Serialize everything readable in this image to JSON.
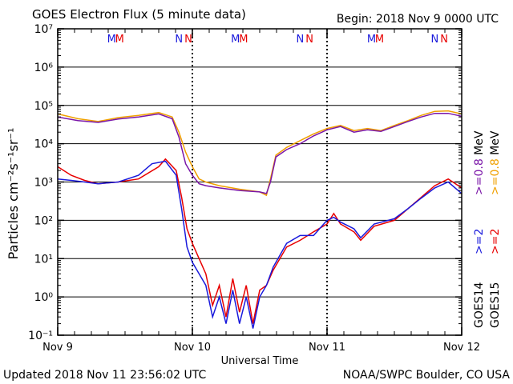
{
  "header": {
    "title": "GOES Electron Flux (5 minute data)",
    "begin": "Begin: 2018 Nov 9 0000 UTC"
  },
  "footer": {
    "updated": "Updated 2018 Nov 11 23:56:02 UTC",
    "credit": "NOAA/SWPC Boulder, CO USA"
  },
  "colors": {
    "goes14_ge2": "#1a1adc",
    "goes15_ge2": "#e80000",
    "goes14_ge08": "#7a16a8",
    "goes15_ge08": "#f0a000",
    "marker_m": [
      "#1a1adc",
      "#e80000"
    ],
    "marker_n": [
      "#1a1adc",
      "#e80000"
    ]
  },
  "markers": [
    {
      "letter": "M",
      "day": 0.4
    },
    {
      "letter": "M",
      "day": 0.46
    },
    {
      "letter": "N",
      "day": 0.9
    },
    {
      "letter": "N",
      "day": 0.97
    },
    {
      "letter": "M",
      "day": 1.32
    },
    {
      "letter": "M",
      "day": 1.38
    },
    {
      "letter": "N",
      "day": 1.8
    },
    {
      "letter": "N",
      "day": 1.87
    },
    {
      "letter": "M",
      "day": 2.33
    },
    {
      "letter": "M",
      "day": 2.39
    },
    {
      "letter": "N",
      "day": 2.8
    },
    {
      "letter": "N",
      "day": 2.87
    }
  ],
  "chart_data": {
    "type": "line",
    "title": "GOES Electron Flux (5 minute data)",
    "xlabel": "Universal Time",
    "ylabel": "Particles cm⁻²s⁻¹sr⁻¹",
    "x_tick_labels": [
      "Nov 9",
      "Nov 10",
      "Nov 11",
      "Nov 12"
    ],
    "y_tick_labels": [
      "10⁻¹",
      "10⁰",
      "10¹",
      "10²",
      "10³",
      "10⁴",
      "10⁵",
      "10⁶",
      "10⁷"
    ],
    "x_range_days": [
      0,
      3
    ],
    "y_log_range": [
      -1,
      7
    ],
    "threshold_line": 1000,
    "grid": true,
    "legend_right": [
      {
        "label": "GOES15",
        "color": "#000000"
      },
      {
        "label": "GOES14",
        "color": "#000000"
      },
      {
        "label": ">=2",
        "color": "#e80000"
      },
      {
        "label": ">=2",
        "color": "#1a1adc"
      },
      {
        "label": ">=0.8",
        "color": "#f0a000"
      },
      {
        "label": ">=0.8",
        "color": "#7a16a8"
      },
      {
        "label": "MeV",
        "color": "#000000"
      },
      {
        "label": "MeV",
        "color": "#000000"
      }
    ],
    "series": [
      {
        "name": "GOES15 >=0.8 MeV",
        "color": "#f0a000",
        "points": [
          [
            0.0,
            60000
          ],
          [
            0.15,
            45000
          ],
          [
            0.3,
            38000
          ],
          [
            0.45,
            48000
          ],
          [
            0.6,
            55000
          ],
          [
            0.75,
            65000
          ],
          [
            0.85,
            50000
          ],
          [
            0.9,
            20000
          ],
          [
            0.95,
            6000
          ],
          [
            1.0,
            2500
          ],
          [
            1.05,
            1200
          ],
          [
            1.1,
            1000
          ],
          [
            1.2,
            800
          ],
          [
            1.35,
            650
          ],
          [
            1.5,
            550
          ],
          [
            1.55,
            450
          ],
          [
            1.58,
            1200
          ],
          [
            1.62,
            5000
          ],
          [
            1.7,
            8000
          ],
          [
            1.8,
            12000
          ],
          [
            1.9,
            18000
          ],
          [
            2.0,
            25000
          ],
          [
            2.1,
            30000
          ],
          [
            2.2,
            22000
          ],
          [
            2.3,
            25000
          ],
          [
            2.4,
            22000
          ],
          [
            2.5,
            30000
          ],
          [
            2.6,
            40000
          ],
          [
            2.7,
            55000
          ],
          [
            2.8,
            70000
          ],
          [
            2.9,
            72000
          ],
          [
            3.0,
            60000
          ]
        ]
      },
      {
        "name": "GOES14 >=0.8 MeV",
        "color": "#7a16a8",
        "points": [
          [
            0.0,
            50000
          ],
          [
            0.15,
            40000
          ],
          [
            0.3,
            36000
          ],
          [
            0.45,
            44000
          ],
          [
            0.6,
            50000
          ],
          [
            0.75,
            60000
          ],
          [
            0.85,
            45000
          ],
          [
            0.9,
            15000
          ],
          [
            0.95,
            3000
          ],
          [
            1.0,
            1500
          ],
          [
            1.05,
            900
          ],
          [
            1.1,
            800
          ],
          [
            1.2,
            700
          ],
          [
            1.35,
            600
          ],
          [
            1.5,
            550
          ],
          [
            1.55,
            500
          ],
          [
            1.58,
            1000
          ],
          [
            1.62,
            4500
          ],
          [
            1.7,
            7000
          ],
          [
            1.8,
            10000
          ],
          [
            1.9,
            16000
          ],
          [
            2.0,
            23000
          ],
          [
            2.1,
            28000
          ],
          [
            2.2,
            20000
          ],
          [
            2.3,
            23000
          ],
          [
            2.4,
            21000
          ],
          [
            2.5,
            28000
          ],
          [
            2.6,
            38000
          ],
          [
            2.7,
            50000
          ],
          [
            2.8,
            62000
          ],
          [
            2.9,
            62000
          ],
          [
            3.0,
            52000
          ]
        ]
      },
      {
        "name": "GOES15 >=2 MeV",
        "color": "#e80000",
        "points": [
          [
            0.0,
            2500
          ],
          [
            0.1,
            1500
          ],
          [
            0.2,
            1100
          ],
          [
            0.3,
            900
          ],
          [
            0.45,
            1000
          ],
          [
            0.6,
            1200
          ],
          [
            0.75,
            2500
          ],
          [
            0.8,
            4000
          ],
          [
            0.88,
            2000
          ],
          [
            0.92,
            400
          ],
          [
            0.96,
            60
          ],
          [
            1.0,
            25
          ],
          [
            1.05,
            10
          ],
          [
            1.1,
            4
          ],
          [
            1.15,
            0.6
          ],
          [
            1.2,
            2
          ],
          [
            1.25,
            0.3
          ],
          [
            1.3,
            3
          ],
          [
            1.35,
            0.4
          ],
          [
            1.4,
            2
          ],
          [
            1.45,
            0.2
          ],
          [
            1.5,
            1.5
          ],
          [
            1.55,
            2
          ],
          [
            1.6,
            5
          ],
          [
            1.7,
            20
          ],
          [
            1.8,
            30
          ],
          [
            1.9,
            50
          ],
          [
            2.0,
            80
          ],
          [
            2.05,
            150
          ],
          [
            2.1,
            80
          ],
          [
            2.2,
            50
          ],
          [
            2.25,
            30
          ],
          [
            2.35,
            70
          ],
          [
            2.5,
            100
          ],
          [
            2.6,
            200
          ],
          [
            2.7,
            400
          ],
          [
            2.8,
            800
          ],
          [
            2.9,
            1200
          ],
          [
            3.0,
            700
          ]
        ]
      },
      {
        "name": "GOES14 >=2 MeV",
        "color": "#1a1adc",
        "points": [
          [
            0.0,
            1200
          ],
          [
            0.1,
            1100
          ],
          [
            0.2,
            1000
          ],
          [
            0.3,
            900
          ],
          [
            0.45,
            1000
          ],
          [
            0.6,
            1500
          ],
          [
            0.7,
            3000
          ],
          [
            0.8,
            3500
          ],
          [
            0.88,
            1500
          ],
          [
            0.92,
            200
          ],
          [
            0.96,
            20
          ],
          [
            1.0,
            8
          ],
          [
            1.05,
            4
          ],
          [
            1.1,
            2
          ],
          [
            1.15,
            0.3
          ],
          [
            1.2,
            1
          ],
          [
            1.25,
            0.2
          ],
          [
            1.3,
            1.5
          ],
          [
            1.35,
            0.2
          ],
          [
            1.4,
            1
          ],
          [
            1.45,
            0.15
          ],
          [
            1.5,
            1
          ],
          [
            1.55,
            2
          ],
          [
            1.6,
            6
          ],
          [
            1.7,
            25
          ],
          [
            1.8,
            40
          ],
          [
            1.9,
            40
          ],
          [
            2.0,
            100
          ],
          [
            2.05,
            120
          ],
          [
            2.1,
            90
          ],
          [
            2.2,
            60
          ],
          [
            2.25,
            35
          ],
          [
            2.35,
            80
          ],
          [
            2.5,
            110
          ],
          [
            2.6,
            200
          ],
          [
            2.7,
            380
          ],
          [
            2.8,
            700
          ],
          [
            2.9,
            1000
          ],
          [
            3.0,
            500
          ]
        ]
      }
    ]
  }
}
